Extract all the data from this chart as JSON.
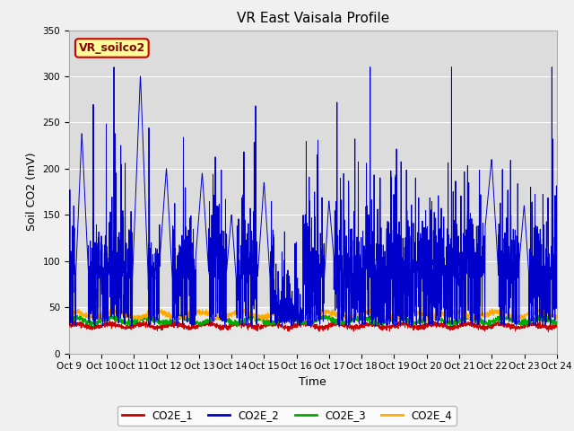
{
  "title": "VR East Vaisala Profile",
  "ylabel": "Soil CO2 (mV)",
  "xlabel": "Time",
  "ylim": [
    0,
    350
  ],
  "xlim": [
    0,
    15
  ],
  "xtick_labels": [
    "Oct 9",
    "Oct 10",
    "Oct 11",
    "Oct 12",
    "Oct 13",
    "Oct 14",
    "Oct 15",
    "Oct 16",
    "Oct 17",
    "Oct 18",
    "Oct 19",
    "Oct 20",
    "Oct 21",
    "Oct 22",
    "Oct 23",
    "Oct 24"
  ],
  "background_color": "#f0f0f0",
  "plot_bg_color": "#e8e8e8",
  "shaded_bg_color": "#d8d8d8",
  "annotation_text": "VR_soilco2",
  "annotation_bg": "#ffff99",
  "annotation_border": "#cc0000",
  "legend_entries": [
    "CO2E_1",
    "CO2E_2",
    "CO2E_3",
    "CO2E_4"
  ],
  "line_colors": [
    "#cc0000",
    "#0000cc",
    "#00aa00",
    "#ffaa00"
  ],
  "title_fontsize": 11,
  "axis_fontsize": 9,
  "tick_fontsize": 7.5
}
